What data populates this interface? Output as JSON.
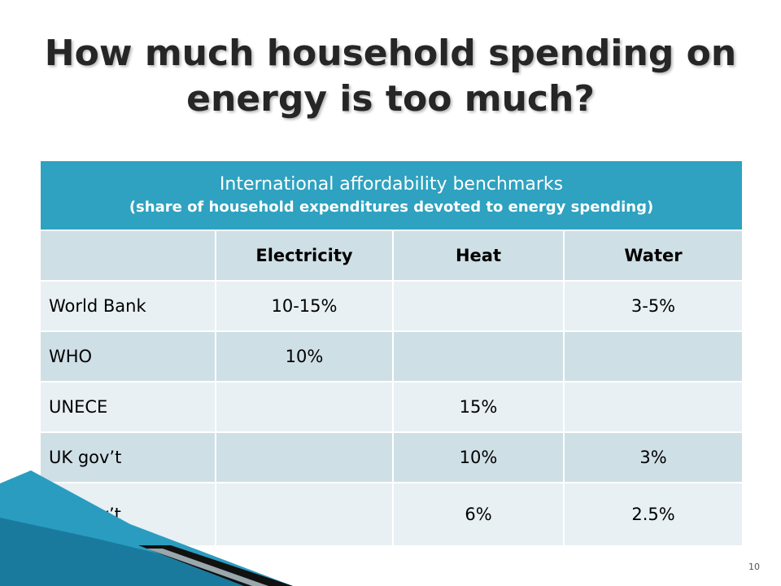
{
  "slide": {
    "title": "How much household spending on energy is too much?",
    "page_number": "10"
  },
  "table": {
    "header_title": "International affordability benchmarks",
    "header_subtitle": "(share of household expenditures devoted to energy spending)",
    "columns": [
      "",
      "Electricity",
      "Heat",
      "Water"
    ],
    "rows": [
      {
        "label": "World Bank",
        "electricity": "10-15%",
        "heat": "",
        "water": "3-5%"
      },
      {
        "label": "WHO",
        "electricity": "10%",
        "heat": "",
        "water": ""
      },
      {
        "label": "UNECE",
        "electricity": "",
        "heat": "15%",
        "water": ""
      },
      {
        "label": "UK gov’t",
        "electricity": "",
        "heat": "10%",
        "water": "3%"
      },
      {
        "label": "US gov’t",
        "electricity": "",
        "heat": "6%",
        "water": "2.5%"
      }
    ]
  },
  "colors": {
    "header_bg": "#2ea2c0",
    "row_dark": "#cfdfe6",
    "row_light": "#e8f0f3",
    "title_text": "#262626",
    "accent_teal": "#1f8fb0"
  }
}
